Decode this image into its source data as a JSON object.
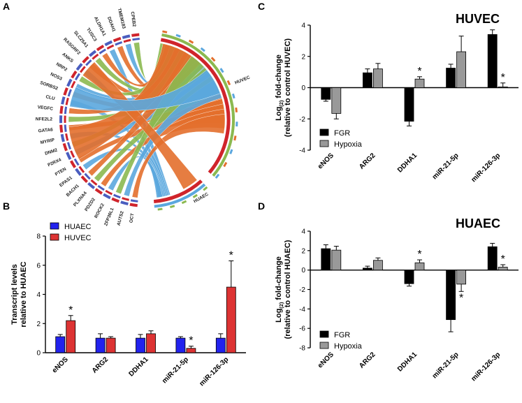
{
  "panel_letters": {
    "a": "A",
    "b": "B",
    "c": "C",
    "d": "D"
  },
  "chart_data": [
    {
      "id": "A",
      "type": "chord",
      "genes": [
        "CPEB2",
        "TMEM183",
        "DDAH1",
        "ALDH1A1",
        "TUSC3",
        "SLC25A1",
        "RASGRF2",
        "ANKS",
        "NRP2",
        "NOS3",
        "SORBS2",
        "CLU",
        "VEGFC",
        "NFE2L2",
        "GATA6",
        "MYRIP",
        "DNM2",
        "P2RX4",
        "PTEN",
        "EPAS1",
        "BACH1",
        "PLXNA4",
        "PDZD2",
        "ROCK2",
        "ZFP36L1",
        "AUTS2",
        "OCT"
      ],
      "ring_labels": [
        "HUVEC",
        "HUAEC"
      ],
      "colors": {
        "orange": "#e36f2c",
        "blue": "#5ba7de",
        "green": "#8bb950",
        "red": "#d0242b",
        "navy": "#4a5dbf"
      }
    },
    {
      "id": "B",
      "type": "bar",
      "categories": [
        "eNOS",
        "ARG2",
        "DDHA1",
        "miR-21-5p",
        "miR-126-3p"
      ],
      "ylabel": [
        "Transcript levels",
        "relative to HUAEC"
      ],
      "ylim": [
        0,
        8
      ],
      "yticks": [
        "0",
        "2",
        "4",
        "6",
        "8"
      ],
      "series": [
        {
          "name": "HUAEC",
          "color": "#2222ee",
          "values": [
            1.1,
            1.0,
            1.0,
            1.0,
            1.0
          ],
          "errors": [
            0.15,
            0.3,
            0.25,
            0.1,
            0.3
          ]
        },
        {
          "name": "HUVEC",
          "color": "#dd3333",
          "values": [
            2.2,
            1.0,
            1.3,
            0.3,
            4.5
          ],
          "errors": [
            0.35,
            0.1,
            0.2,
            0.15,
            1.8
          ]
        }
      ],
      "significance": [
        {
          "category": 0,
          "series": 1,
          "label": "*"
        },
        {
          "category": 3,
          "series": 1,
          "label": "*"
        },
        {
          "category": 4,
          "series": 1,
          "label": "*"
        }
      ]
    },
    {
      "id": "C",
      "type": "bar",
      "title": "HUVEC",
      "categories": [
        "eNOS",
        "ARG2",
        "DDHA1",
        "miR-21-5p",
        "miR-126-3p"
      ],
      "ylabel": [
        "Log(2) fold-change",
        "(relative to control HUVEC)"
      ],
      "ylabel_parts": {
        "pre": "Log",
        "sub": "(2)",
        "post": " fold-change",
        "line2": "(relative to control HUVEC)"
      },
      "ylim": [
        -4,
        4
      ],
      "yticks": [
        "-4",
        "-2",
        "0",
        "2",
        "4"
      ],
      "series": [
        {
          "name": "FGR",
          "color": "#000000",
          "values": [
            -0.75,
            0.95,
            -2.15,
            1.25,
            3.4
          ],
          "errors": [
            0.12,
            0.25,
            0.3,
            0.25,
            0.3
          ]
        },
        {
          "name": "Hypoxia",
          "color": "#999999",
          "values": [
            -1.65,
            1.2,
            0.55,
            2.3,
            0.05
          ],
          "errors": [
            0.35,
            0.35,
            0.15,
            1.0,
            0.25
          ]
        }
      ],
      "significance": [
        {
          "category": 2,
          "series": 1,
          "label": "*"
        },
        {
          "category": 4,
          "series": 1,
          "label": "*"
        }
      ]
    },
    {
      "id": "D",
      "type": "bar",
      "title": "HUAEC",
      "categories": [
        "eNOS",
        "ARG2",
        "DDHA1",
        "miR-21-5p",
        "miR-126-3p"
      ],
      "ylabel": [
        "Log(2) fold-change",
        "(relative to control HUAEC)"
      ],
      "ylabel_parts": {
        "pre": "Log",
        "sub": "(2)",
        "post": " fold-change",
        "line2": "(relative to control HUAEC)"
      },
      "ylim": [
        -8,
        4
      ],
      "yticks": [
        "-8",
        "-6",
        "-4",
        "-2",
        "0",
        "2",
        "4"
      ],
      "series": [
        {
          "name": "FGR",
          "color": "#000000",
          "values": [
            2.2,
            0.2,
            -1.4,
            -5.1,
            2.4
          ],
          "errors": [
            0.4,
            0.2,
            0.25,
            1.25,
            0.35
          ]
        },
        {
          "name": "Hypoxia",
          "color": "#999999",
          "values": [
            2.05,
            1.0,
            0.75,
            -1.45,
            0.3
          ],
          "errors": [
            0.4,
            0.25,
            0.3,
            0.75,
            0.25
          ]
        }
      ],
      "significance": [
        {
          "category": 2,
          "series": 1,
          "label": "*"
        },
        {
          "category": 3,
          "series": 1,
          "label": "*"
        },
        {
          "category": 4,
          "series": 1,
          "label": "*"
        }
      ]
    }
  ]
}
